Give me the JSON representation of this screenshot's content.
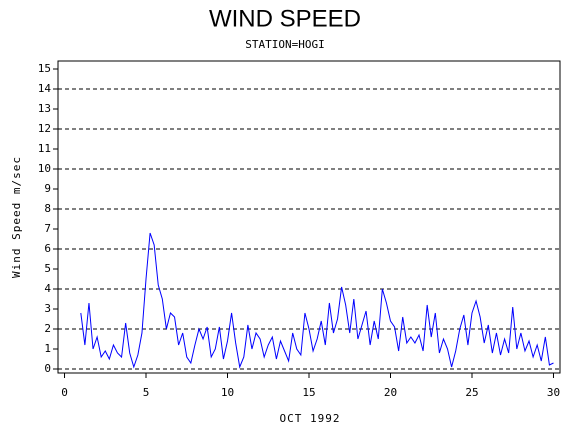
{
  "chart_data": {
    "type": "line",
    "title": "WIND SPEED",
    "subtitle": "STATION=HOGI",
    "xlabel": "OCT 1992",
    "ylabel": "Wind Speed m/sec",
    "x": [
      1,
      1.25,
      1.5,
      1.75,
      2,
      2.25,
      2.5,
      2.75,
      3,
      3.25,
      3.5,
      3.75,
      4,
      4.25,
      4.5,
      4.75,
      5,
      5.25,
      5.5,
      5.75,
      6,
      6.25,
      6.5,
      6.75,
      7,
      7.25,
      7.5,
      7.75,
      8,
      8.25,
      8.5,
      8.75,
      9,
      9.25,
      9.5,
      9.75,
      10,
      10.25,
      10.5,
      10.75,
      11,
      11.25,
      11.5,
      11.75,
      12,
      12.25,
      12.5,
      12.75,
      13,
      13.25,
      13.5,
      13.75,
      14,
      14.25,
      14.5,
      14.75,
      15,
      15.25,
      15.5,
      15.75,
      16,
      16.25,
      16.5,
      16.75,
      17,
      17.25,
      17.5,
      17.75,
      18,
      18.25,
      18.5,
      18.75,
      19,
      19.25,
      19.5,
      19.75,
      20,
      20.25,
      20.5,
      20.75,
      21,
      21.25,
      21.5,
      21.75,
      22,
      22.25,
      22.5,
      22.75,
      23,
      23.25,
      23.5,
      23.75,
      24,
      24.25,
      24.5,
      24.75,
      25,
      25.25,
      25.5,
      25.75,
      26,
      26.25,
      26.5,
      26.75,
      27,
      27.25,
      27.5,
      27.75,
      28,
      28.25,
      28.5,
      28.75,
      29,
      29.25,
      29.5,
      29.75,
      30
    ],
    "series": [
      {
        "color": "#0000ff",
        "values": [
          2.8,
          1.2,
          3.3,
          1.0,
          1.6,
          0.6,
          0.9,
          0.5,
          1.2,
          0.8,
          0.6,
          2.3,
          0.8,
          0.1,
          0.7,
          1.8,
          4.5,
          6.8,
          6.2,
          4.2,
          3.5,
          2.0,
          2.8,
          2.6,
          1.2,
          1.8,
          0.6,
          0.3,
          1.2,
          2.0,
          1.5,
          2.1,
          0.6,
          1.0,
          2.1,
          0.5,
          1.4,
          2.8,
          1.3,
          0.1,
          0.6,
          2.2,
          1.0,
          1.8,
          1.5,
          0.6,
          1.2,
          1.6,
          0.5,
          1.4,
          0.9,
          0.4,
          1.8,
          1.0,
          0.7,
          2.8,
          2.0,
          0.9,
          1.5,
          2.4,
          1.2,
          3.3,
          1.8,
          2.5,
          4.1,
          3.2,
          1.8,
          3.5,
          1.5,
          2.2,
          2.9,
          1.2,
          2.4,
          1.5,
          4.0,
          3.3,
          2.4,
          2.1,
          0.9,
          2.6,
          1.3,
          1.6,
          1.3,
          1.7,
          0.9,
          3.2,
          1.6,
          2.8,
          0.8,
          1.5,
          1.0,
          0.1,
          0.9,
          2.0,
          2.7,
          1.2,
          2.8,
          3.4,
          2.6,
          1.3,
          2.2,
          0.8,
          1.8,
          0.7,
          1.5,
          0.8,
          3.1,
          1.0,
          1.8,
          0.9,
          1.4,
          0.6,
          1.2,
          0.4,
          1.6,
          0.2,
          0.3
        ]
      }
    ],
    "xlim": [
      -0.4,
      30.4
    ],
    "ylim": [
      -0.2,
      15.4
    ],
    "xticks": [
      0,
      5,
      10,
      15,
      20,
      25,
      30
    ],
    "yticks": [
      0,
      1,
      2,
      3,
      4,
      5,
      6,
      7,
      8,
      9,
      10,
      11,
      12,
      13,
      14,
      15
    ],
    "grid_values": [
      0,
      2,
      4,
      6,
      8,
      10,
      12,
      14
    ]
  }
}
